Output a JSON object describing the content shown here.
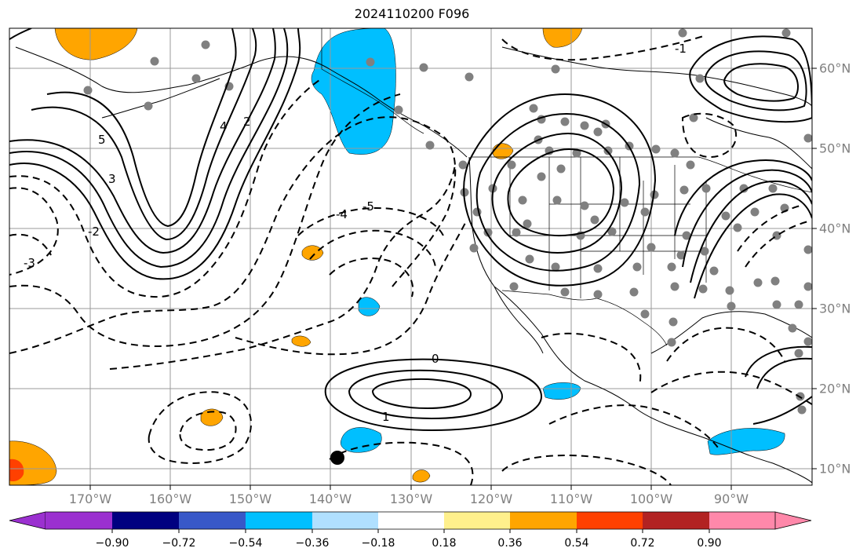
{
  "title": "2024110200 F096",
  "lon_labels": [
    "170°W",
    "160°W",
    "150°W",
    "140°W",
    "130°W",
    "120°W",
    "110°W",
    "100°W",
    "90°W"
  ],
  "lat_labels": [
    "60°N",
    "50°N",
    "40°N",
    "30°N",
    "20°N",
    "10°N"
  ],
  "colorbar": {
    "ticks": [
      "−0.90",
      "−0.72",
      "−0.54",
      "−0.36",
      "−0.18",
      "0.18",
      "0.36",
      "0.54",
      "0.72",
      "0.90"
    ],
    "colors": [
      "#9b30d0",
      "#000080",
      "#3858c8",
      "#00bfff",
      "#b0e0ff",
      "#ffffff",
      "#fff08c",
      "#ffa500",
      "#ff4000",
      "#b22222",
      "#ff88aa"
    ]
  },
  "contour_labels": [
    "5",
    "4",
    "3",
    "2",
    "1",
    "0",
    "-1",
    "-2",
    "-3",
    "-4",
    "-5"
  ],
  "colors": {
    "land_gray": "#808080",
    "fill_blue": "#00bfff",
    "fill_orange": "#ffa500",
    "fill_red": "#ff4000"
  }
}
